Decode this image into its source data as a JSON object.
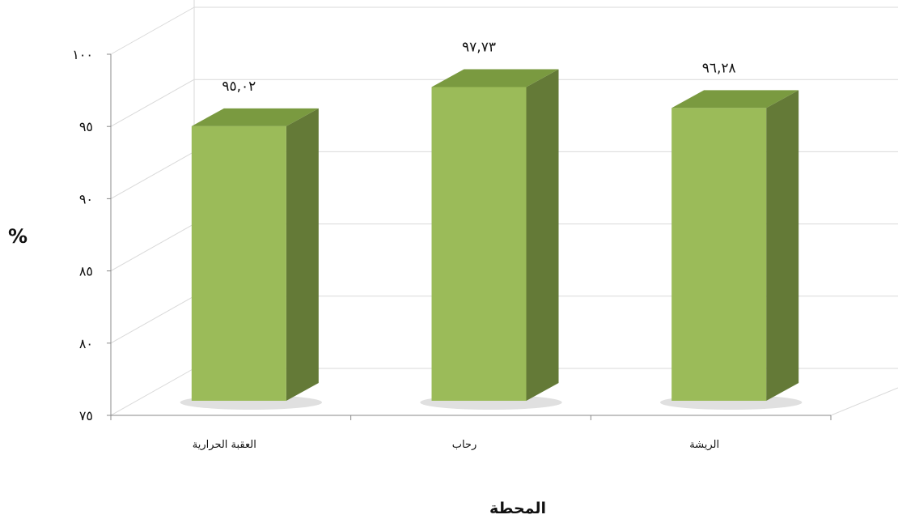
{
  "chart_data": {
    "type": "bar",
    "style": "3d-column",
    "title": "",
    "xlabel": "المحطة",
    "ylabel": "%",
    "ylim": [
      75,
      100
    ],
    "y_ticks": [
      75,
      80,
      85,
      90,
      95,
      100
    ],
    "y_tick_labels": [
      "٧٥",
      "٨٠",
      "٨٥",
      "٩٠",
      "٩٥",
      "١٠٠"
    ],
    "categories": [
      "العقبة الحرارية",
      "رحاب",
      "الريشة"
    ],
    "values": [
      95.02,
      97.73,
      96.28
    ],
    "data_labels": [
      "٩٥,٠٢",
      "٩٧,٧٣",
      "٩٦,٢٨"
    ],
    "grid": true,
    "legend": "none",
    "colors": {
      "bar_front": "#9bbb59",
      "bar_side": "#647a37",
      "bar_top": "#7a9a40",
      "grid": "#d9d9d9",
      "axis": "#888888"
    }
  }
}
